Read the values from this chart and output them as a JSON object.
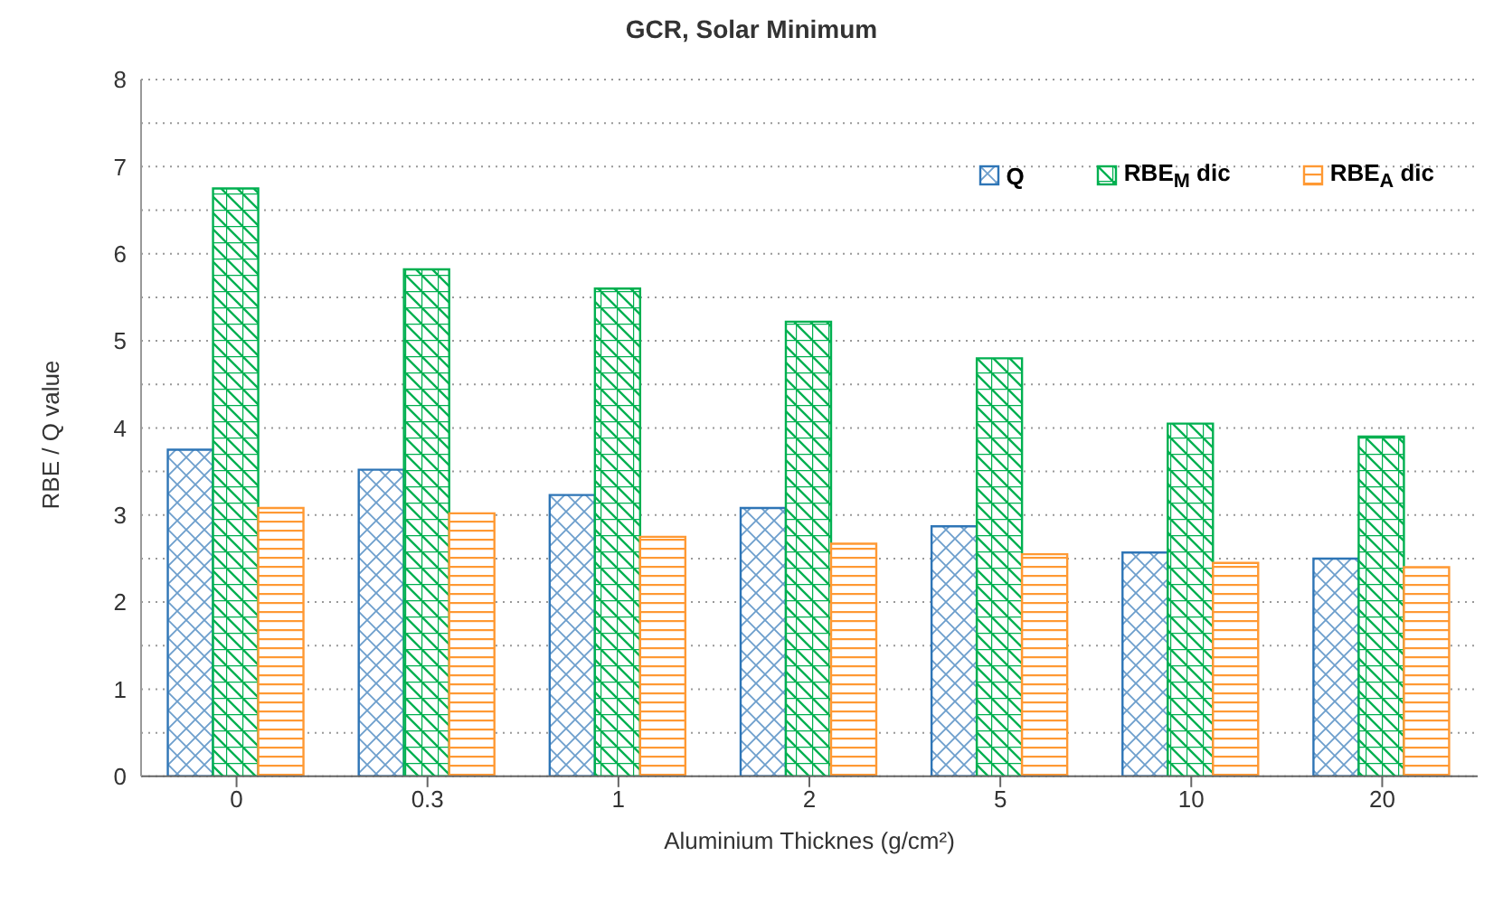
{
  "chart_data": {
    "type": "bar",
    "title": "GCR, Solar Minimum",
    "xlabel": "Aluminium Thicknes (g/cm²)",
    "ylabel": "RBE / Q value",
    "categories": [
      "0",
      "0.3",
      "1",
      "2",
      "5",
      "10",
      "20"
    ],
    "series": [
      {
        "name": "Q",
        "color": "#2e75b6",
        "values": [
          3.75,
          3.52,
          3.23,
          3.08,
          2.87,
          2.57,
          2.5
        ]
      },
      {
        "name": "RBE$_{M}$ dic",
        "color": "#00b050",
        "values": [
          6.75,
          5.82,
          5.6,
          5.22,
          4.8,
          4.05,
          3.9
        ]
      },
      {
        "name": "RBE$_{A}$ dic",
        "color": "#ff9933",
        "values": [
          3.08,
          3.02,
          2.75,
          2.67,
          2.55,
          2.45,
          2.4
        ]
      }
    ],
    "ylim": [
      0,
      8
    ],
    "yticks": [
      0,
      {
        "value": 0.5,
        "label": null
      },
      1,
      {
        "value": 1.5,
        "label": null
      },
      2,
      {
        "value": 2.5,
        "label": null
      },
      3,
      {
        "value": 3.5,
        "label": null
      },
      4,
      {
        "value": 4.5,
        "label": null
      },
      5,
      {
        "value": 5.5,
        "label": null
      },
      6,
      {
        "value": 6.5,
        "label": null
      },
      7,
      {
        "value": 7.5,
        "label": null
      },
      8
    ],
    "grid": "y",
    "legend": "top right"
  }
}
